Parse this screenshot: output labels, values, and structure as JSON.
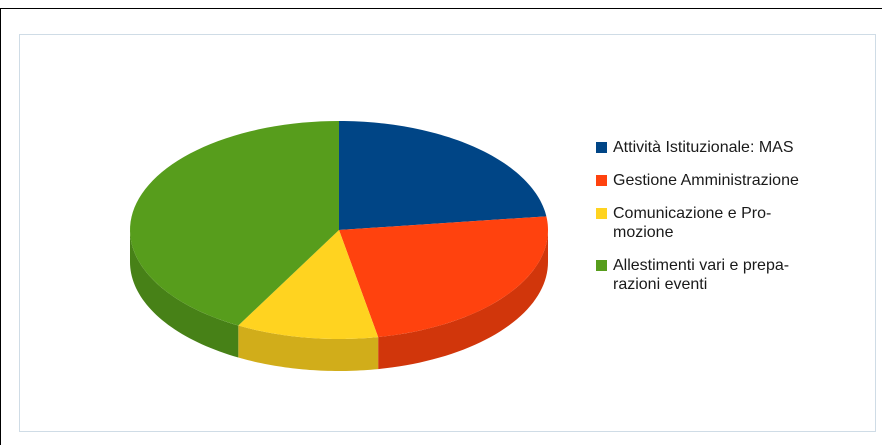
{
  "chart_data": {
    "type": "pie",
    "title": "",
    "legend_position": "right",
    "slices": [
      {
        "label": "Attività Istituzionale: MAS",
        "display_label": "Attività Istituzionale: MAS",
        "value": 23,
        "color": "#004586"
      },
      {
        "label": "Gestione Amministrazione",
        "display_label": "Gestione Amministrazione",
        "value": 24,
        "color": "#ff420e"
      },
      {
        "label": "Comunicazione e Promozione",
        "display_label": "Comunicazione e Pro-\nmozione",
        "value": 11,
        "color": "#ffd320"
      },
      {
        "label": "Allestimenti vari e preparazioni eventi",
        "display_label": "Allestimenti vari e prepa-\nrazioni eventi",
        "value": 42,
        "color": "#579d1c"
      }
    ]
  }
}
